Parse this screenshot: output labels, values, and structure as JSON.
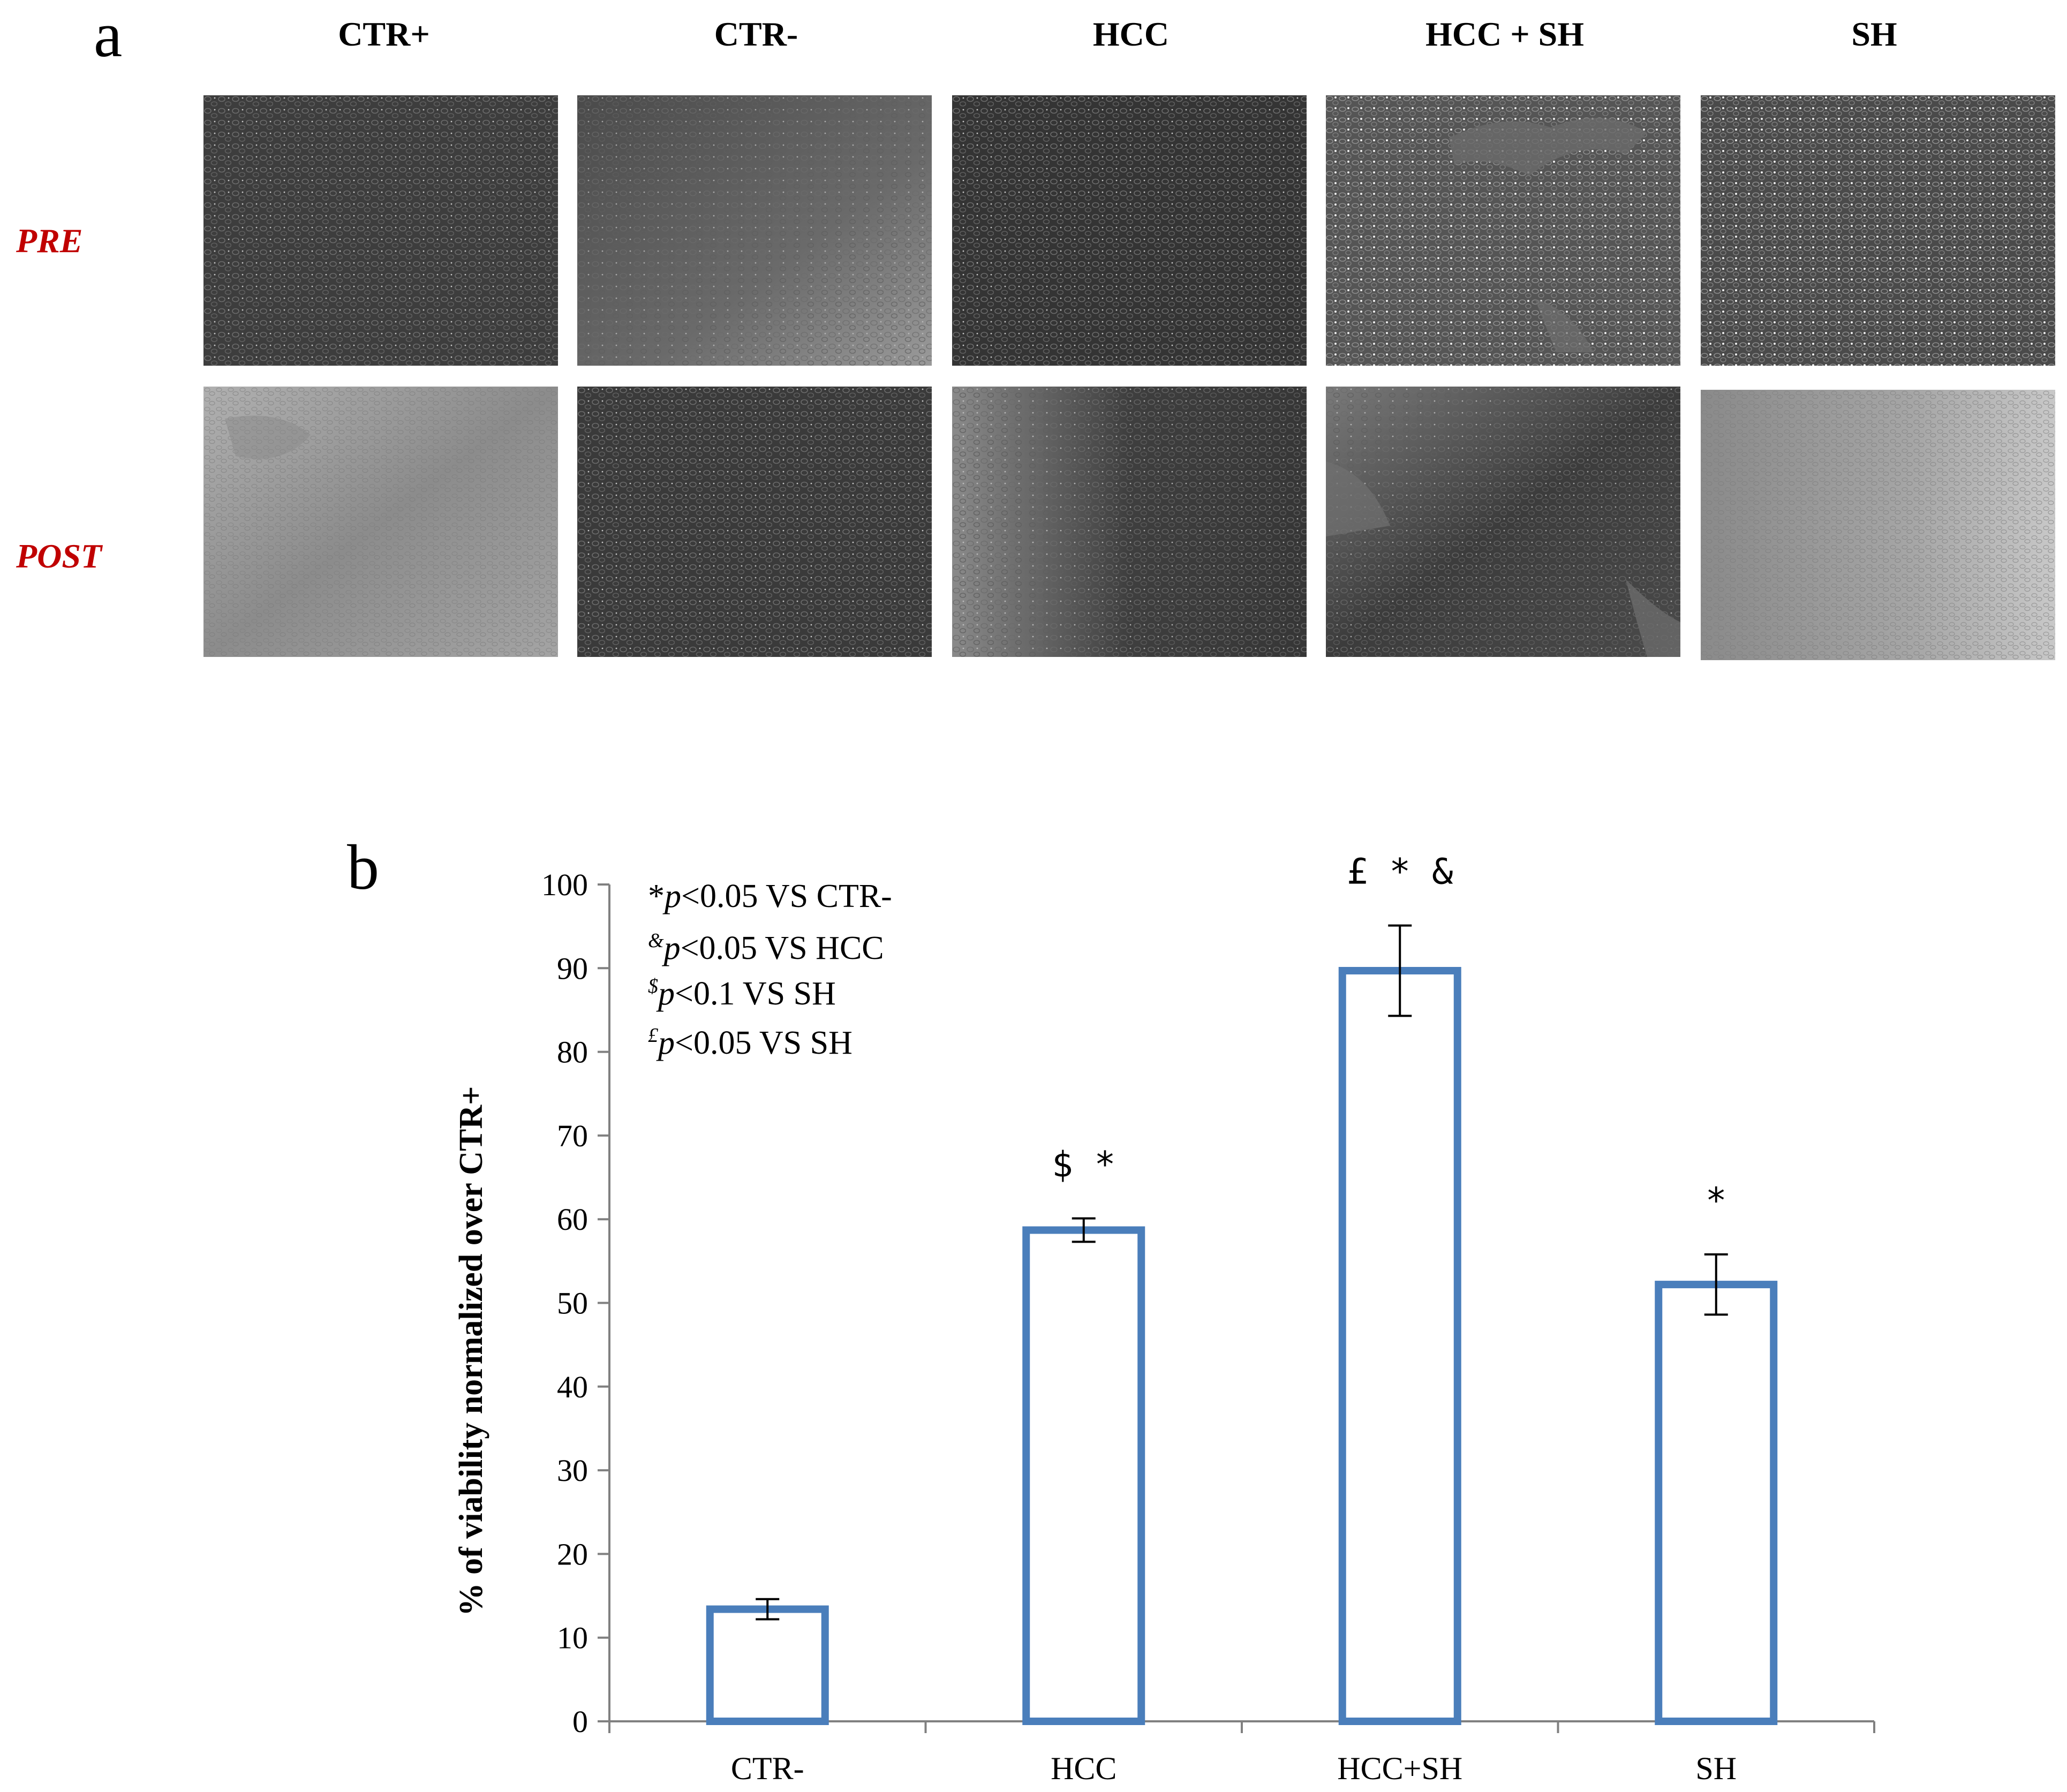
{
  "panel_a": {
    "letter": "a",
    "columns": [
      "CTR+",
      "CTR-",
      "HCC",
      "HCC + SH",
      "SH"
    ],
    "rows": [
      "PRE",
      "POST"
    ],
    "label_color": "#c00000"
  },
  "panel_b": {
    "letter": "b",
    "significance_legend": [
      {
        "symbol": "*",
        "p": "p",
        "text": "<0.05 VS CTR-"
      },
      {
        "symbol": "&",
        "p": "p",
        "text": "<0.05 VS HCC"
      },
      {
        "symbol": "$",
        "p": "p",
        "text": "<0.1 VS SH"
      },
      {
        "symbol": "£",
        "p": "p",
        "text": "<0.05 VS SH"
      }
    ]
  },
  "chart_data": {
    "type": "bar",
    "categories": [
      "CTR-",
      "HCC",
      "HCC+SH",
      "SH"
    ],
    "values": [
      13.4,
      58.7,
      89.7,
      52.2
    ],
    "errors": [
      1.2,
      1.4,
      5.4,
      3.6
    ],
    "annotations": [
      "",
      "$ *",
      "£ * &",
      "*"
    ],
    "ylabel": "% of viability normalized over CTR+",
    "xlabel": "",
    "ylim": [
      0,
      100
    ],
    "yticks": [
      0,
      10,
      20,
      30,
      40,
      50,
      60,
      70,
      80,
      90,
      100
    ],
    "bar_color": "#4a7ebb",
    "bar_fill": "#ffffff"
  }
}
